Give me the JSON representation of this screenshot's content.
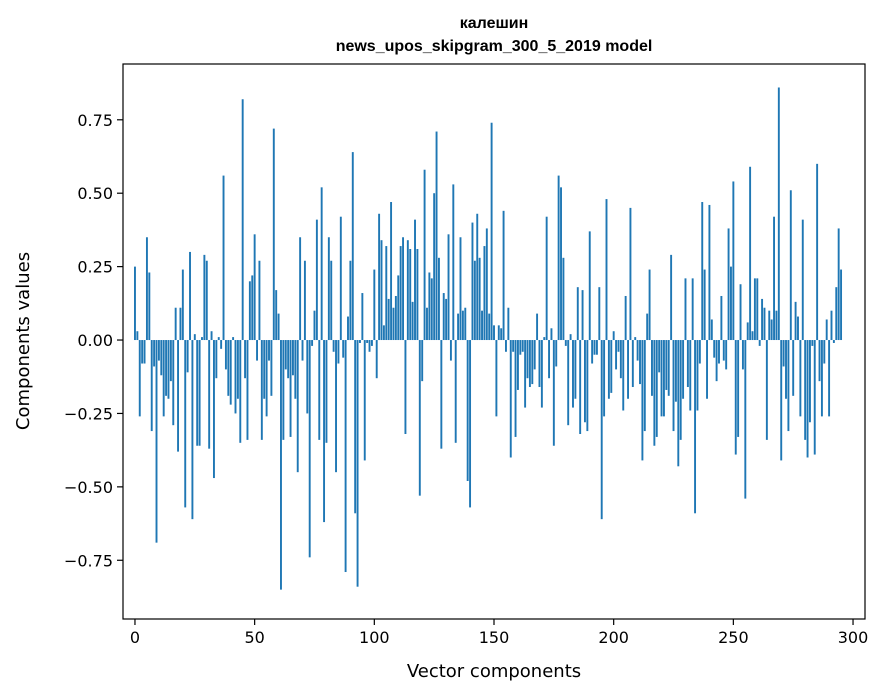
{
  "chart_data": {
    "type": "bar",
    "title": "калешин",
    "subtitle": "news_upos_skipgram_300_5_2019 model",
    "xlabel": "Vector components",
    "ylabel": "Components values",
    "xlim": [
      -5,
      305
    ],
    "ylim": [
      -0.95,
      0.94
    ],
    "xticks": [
      0,
      50,
      100,
      150,
      200,
      250,
      300
    ],
    "yticks": [
      -0.75,
      -0.5,
      -0.25,
      0.0,
      0.25,
      0.5,
      0.75
    ],
    "ytick_labels": [
      "−0.75",
      "−0.50",
      "−0.25",
      "0.00",
      "0.25",
      "0.50",
      "0.75"
    ],
    "bar_color": "#1f77b4",
    "x": "0..299",
    "values": [
      0.25,
      0.03,
      -0.26,
      -0.08,
      -0.08,
      0.35,
      0.23,
      -0.31,
      -0.09,
      -0.69,
      -0.07,
      -0.12,
      -0.26,
      -0.19,
      -0.2,
      -0.14,
      -0.29,
      0.11,
      -0.38,
      0.11,
      0.24,
      -0.57,
      -0.11,
      0.3,
      -0.61,
      0.02,
      -0.36,
      -0.36,
      0.01,
      0.29,
      0.27,
      -0.37,
      0.03,
      -0.47,
      -0.13,
      0.01,
      -0.03,
      0.56,
      -0.1,
      -0.19,
      -0.22,
      0.01,
      -0.25,
      -0.2,
      -0.35,
      0.82,
      -0.13,
      -0.34,
      0.2,
      0.22,
      0.36,
      -0.07,
      0.27,
      -0.34,
      -0.2,
      -0.26,
      -0.07,
      -0.19,
      0.72,
      0.17,
      0.09,
      -0.85,
      -0.34,
      -0.1,
      -0.13,
      -0.33,
      -0.12,
      -0.2,
      -0.45,
      0.35,
      -0.07,
      0.27,
      -0.25,
      -0.74,
      -0.02,
      0.1,
      0.41,
      -0.34,
      0.52,
      -0.62,
      -0.35,
      0.35,
      0.27,
      -0.04,
      -0.45,
      -0.08,
      0.42,
      -0.06,
      -0.79,
      0.08,
      0.27,
      0.64,
      -0.59,
      -0.84,
      -0.01,
      0.16,
      -0.41,
      -0.01,
      -0.04,
      -0.02,
      0.24,
      -0.13,
      0.43,
      0.34,
      0.05,
      0.32,
      0.14,
      0.47,
      0.11,
      0.15,
      0.22,
      0.32,
      0.35,
      -0.32,
      0.34,
      0.31,
      0.13,
      0.41,
      0.31,
      -0.53,
      -0.14,
      0.58,
      0.11,
      0.23,
      0.21,
      0.5,
      0.71,
      0.28,
      -0.37,
      0.16,
      0.14,
      0.36,
      -0.07,
      0.53,
      -0.35,
      0.09,
      0.35,
      0.1,
      0.11,
      -0.48,
      -0.57,
      0.4,
      0.27,
      0.43,
      0.28,
      0.1,
      0.32,
      0.38,
      0.09,
      0.74,
      0.05,
      -0.26,
      0.05,
      0.04,
      0.44,
      -0.04,
      0.11,
      -0.4,
      -0.04,
      -0.33,
      -0.17,
      -0.05,
      -0.04,
      -0.23,
      -0.13,
      -0.16,
      -0.15,
      -0.1,
      0.09,
      -0.16,
      -0.23,
      0.01,
      0.42,
      -0.13,
      0.04,
      -0.36,
      -0.09,
      0.56,
      0.52,
      0.28,
      -0.02,
      -0.29,
      0.02,
      -0.23,
      -0.2,
      0.18,
      -0.32,
      0.17,
      -0.28,
      -0.31,
      0.37,
      -0.08,
      -0.05,
      -0.05,
      0.18,
      -0.61,
      -0.26,
      0.48,
      -0.2,
      -0.18,
      0.03,
      -0.1,
      -0.04,
      -0.13,
      -0.24,
      0.15,
      -0.2,
      0.45,
      -0.16,
      0.01,
      -0.07,
      -0.15,
      -0.41,
      -0.31,
      0.09,
      0.24,
      -0.19,
      -0.36,
      -0.33,
      -0.11,
      -0.26,
      -0.26,
      -0.17,
      -0.19,
      0.29,
      -0.31,
      -0.21,
      -0.43,
      -0.34,
      -0.2,
      0.21,
      -0.16,
      -0.24,
      0.21,
      -0.59,
      -0.24,
      -0.08,
      0.47,
      0.24,
      -0.2,
      0.46,
      0.07,
      -0.06,
      -0.14,
      -0.08,
      0.15,
      -0.07,
      -0.1,
      0.38,
      0.25,
      0.54,
      -0.39,
      -0.33,
      0.19,
      -0.1,
      -0.54,
      0.06,
      0.59,
      0.03,
      0.21,
      0.21,
      -0.02,
      0.14,
      0.11,
      -0.34,
      0.1,
      0.07,
      0.42,
      0.1,
      0.86,
      -0.41,
      -0.09,
      -0.2,
      -0.31,
      0.51,
      -0.19,
      0.13,
      0.08,
      -0.26,
      0.41,
      -0.34,
      -0.4,
      -0.28,
      -0.02,
      -0.39,
      0.6,
      -0.14,
      -0.26,
      -0.08,
      0.07,
      -0.26,
      0.1,
      -0.01,
      0.18,
      0.38,
      0.24
    ]
  }
}
